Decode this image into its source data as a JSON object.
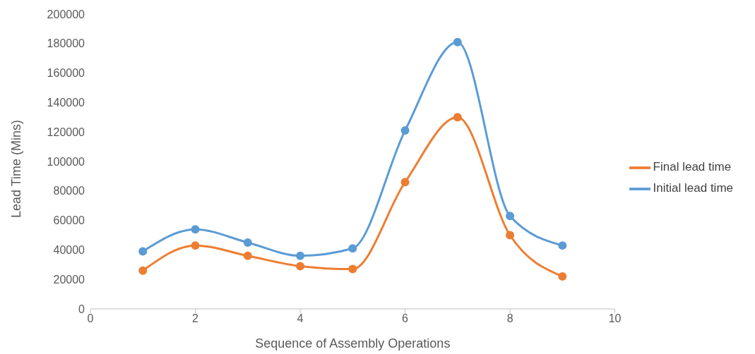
{
  "chart_data": {
    "type": "line",
    "xlabel": "Sequence of Assembly Operations",
    "ylabel": "Lead Time (Mins)",
    "x": [
      1,
      2,
      3,
      4,
      5,
      6,
      7,
      8,
      9
    ],
    "series": [
      {
        "name": "Initial lead time",
        "color": "#5b9bd5",
        "values": [
          39000,
          54000,
          45000,
          36000,
          41000,
          121000,
          181000,
          63000,
          43000
        ]
      },
      {
        "name": "Final lead time",
        "color": "#ed7d31",
        "values": [
          26000,
          43000,
          36000,
          29000,
          27000,
          86000,
          130000,
          50000,
          22000
        ]
      }
    ],
    "xlim": [
      0,
      10
    ],
    "xticks": [
      0,
      2,
      4,
      6,
      8,
      10
    ],
    "ylim": [
      0,
      200000
    ],
    "yticks": [
      0,
      20000,
      40000,
      60000,
      80000,
      100000,
      120000,
      140000,
      160000,
      180000,
      200000
    ],
    "legend": "right",
    "marker": "circle"
  }
}
